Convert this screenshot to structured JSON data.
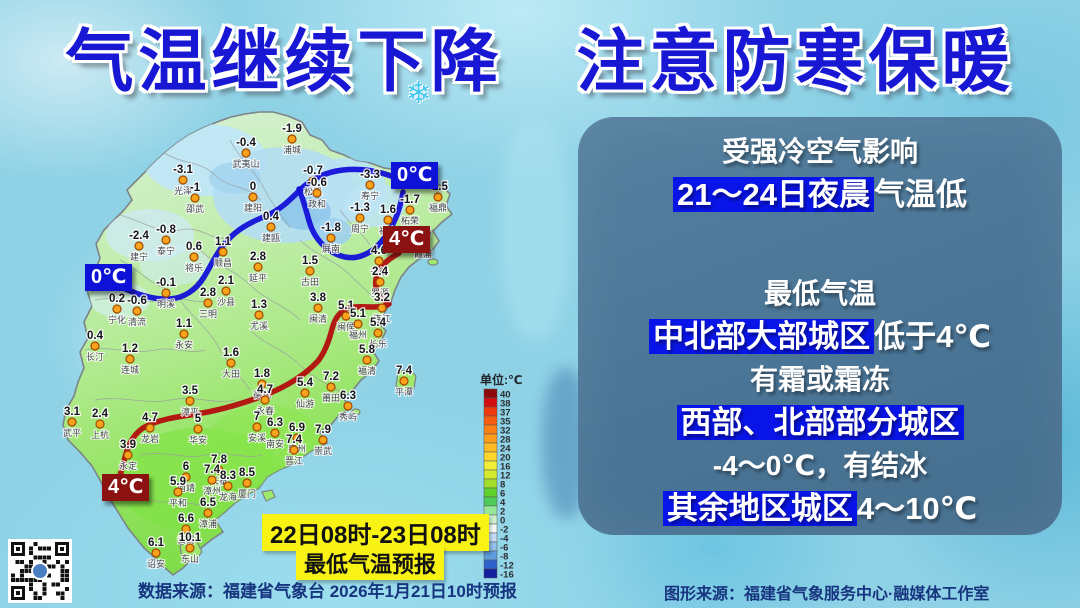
{
  "title": "气温继续下降　注意防寒保暖",
  "info_panel": {
    "lines": [
      {
        "segments": [
          {
            "t": "受强冷空气影响",
            "hl": false
          }
        ]
      },
      {
        "segments": [
          {
            "t": "21～24日夜晨",
            "hl": true
          },
          {
            "t": "气温低",
            "hl": false
          }
        ]
      },
      {
        "spacer": true
      },
      {
        "segments": [
          {
            "t": "最低气温",
            "hl": false
          }
        ]
      },
      {
        "segments": [
          {
            "t": "中北部大部城区",
            "hl": true
          },
          {
            "t": "低于4℃",
            "hl": false
          }
        ]
      },
      {
        "segments": [
          {
            "t": "有霜或霜冻",
            "hl": false
          }
        ]
      },
      {
        "segments": [
          {
            "t": "西部、北部部分城区",
            "hl": true
          }
        ]
      },
      {
        "segments": [
          {
            "t": "-4～0℃，有结冰",
            "hl": false
          }
        ]
      },
      {
        "segments": [
          {
            "t": "其余地区城区",
            "hl": true
          },
          {
            "t": "4～10℃",
            "hl": false
          }
        ]
      }
    ]
  },
  "caption": {
    "line1": "22日08时-23日08时",
    "line2": "最低气温预报"
  },
  "sources": {
    "data_source": "数据来源：福建省气象台 2026年1月21日10时预报",
    "graphic_source": "图形来源：福建省气象服务中心·融媒体工作室"
  },
  "legend": {
    "title": "单位:℃",
    "entries": [
      [
        "40",
        "#8c0a0a"
      ],
      [
        "38",
        "#d40f0f"
      ],
      [
        "37",
        "#ee3a0e"
      ],
      [
        "35",
        "#f65d10"
      ],
      [
        "32",
        "#f97e14"
      ],
      [
        "28",
        "#fb9c1c"
      ],
      [
        "24",
        "#fdbb24"
      ],
      [
        "20",
        "#fdd72c"
      ],
      [
        "16",
        "#f2ee38"
      ],
      [
        "12",
        "#d4e92e"
      ],
      [
        "8",
        "#a3de2a"
      ],
      [
        "6",
        "#5ed12c"
      ],
      [
        "4",
        "#4ecb58"
      ],
      [
        "2",
        "#97e79b"
      ],
      [
        "0",
        "#cef2cf"
      ],
      [
        "-2",
        "#f3f8f3"
      ],
      [
        "-4",
        "#c2dcf2"
      ],
      [
        "-6",
        "#94c2ea"
      ],
      [
        "-8",
        "#5f9cdd"
      ],
      [
        "-12",
        "#2f62cd"
      ],
      [
        "-16",
        "#141f9e"
      ]
    ]
  },
  "map": {
    "contour_labels": [
      {
        "text": "0℃"
      },
      {
        "text": "0℃"
      },
      {
        "text": "4℃"
      },
      {
        "text": "4℃"
      }
    ],
    "contours": [
      {
        "name": "isotherm-0c",
        "color": "#1411d8",
        "paths": [
          "M119 286 C136 294 153 300 170 299 C184 298 196 290 204 277 C212 264 217 252 226 242 C237 229 251 222 266 216 C280 210 290 200 300 190 C311 179 326 172 343 170 C360 168 377 171 391 176",
          "M403 192 C400 211 393 228 381 242 C371 254 356 261 341 256 C326 251 315 239 310 224 C306 211 303 198 299 189"
        ]
      },
      {
        "name": "isotherm-4c",
        "color": "#b30e0e",
        "paths": [
          "M399 253 C389 259 378 266 376 279 C374 291 381 298 389 304 C380 309 367 306 354 307 C342 308 335 317 332 329 C329 341 325 352 318 361 C303 377 282 389 260 397 C238 405 216 411 196 414 C176 417 156 420 143 428 C131 436 127 449 124 461 C122 470 120 475 119 479"
        ]
      }
    ],
    "stations": [
      [
        "浦城",
        "-1.9",
        292,
        139
      ],
      [
        "武夷山",
        "-0.4",
        246,
        153
      ],
      [
        "光泽",
        "-3.1",
        183,
        180
      ],
      [
        "邵武",
        "-1",
        195,
        198
      ],
      [
        "建阳",
        "0",
        253,
        197
      ],
      [
        "松溪",
        "-0.7",
        313,
        181
      ],
      [
        "政和",
        "-0.6",
        317,
        193
      ],
      [
        "建瓯",
        "0.4",
        271,
        227
      ],
      [
        "寿宁",
        "-3.3",
        370,
        185
      ],
      [
        "福鼎",
        "-1.5",
        438,
        197
      ],
      [
        "柘荣",
        "-1.7",
        410,
        210
      ],
      [
        "福安",
        "1.6",
        388,
        220
      ],
      [
        "霞浦",
        "2.6",
        423,
        243
      ],
      [
        "周宁",
        "-1.3",
        360,
        218
      ],
      [
        "屏南",
        "-1.8",
        331,
        238
      ],
      [
        "宁德",
        "4.6",
        379,
        261
      ],
      [
        "古田",
        "1.5",
        310,
        271
      ],
      [
        "泰宁",
        "-0.8",
        166,
        240
      ],
      [
        "建宁",
        "-2.4",
        139,
        246
      ],
      [
        "将乐",
        "0.6",
        194,
        257
      ],
      [
        "顺昌",
        "1.1",
        223,
        252
      ],
      [
        "延平",
        "2.8",
        258,
        267
      ],
      [
        "明溪",
        "-0.1",
        166,
        293
      ],
      [
        "宁化",
        "0.2",
        117,
        309
      ],
      [
        "清流",
        "-0.6",
        137,
        311
      ],
      [
        "三明",
        "2.8",
        208,
        303
      ],
      [
        "沙县",
        "2.1",
        226,
        291
      ],
      [
        "尤溪",
        "1.3",
        259,
        315
      ],
      [
        "闽清",
        "3.8",
        318,
        308
      ],
      [
        "罗源",
        "2.4",
        380,
        282
      ],
      [
        "连江",
        "3.2",
        382,
        308
      ],
      [
        "闽侯",
        "5.1",
        346,
        316
      ],
      [
        "福州",
        "5.1",
        358,
        324
      ],
      [
        "长乐",
        "5.4",
        378,
        333
      ],
      [
        "福清",
        "5.8",
        367,
        360
      ],
      [
        "平潭",
        "7.4",
        404,
        381
      ],
      [
        "长汀",
        "0.4",
        95,
        346
      ],
      [
        "连城",
        "1.2",
        130,
        359
      ],
      [
        "永安",
        "1.1",
        184,
        334
      ],
      [
        "大田",
        "1.6",
        231,
        363
      ],
      [
        "德化",
        "1.8",
        262,
        384
      ],
      [
        "永春",
        "4.7",
        265,
        400
      ],
      [
        "仙游",
        "5.4",
        305,
        393
      ],
      [
        "莆田",
        "7.2",
        331,
        387
      ],
      [
        "秀屿",
        "6.3",
        348,
        406
      ],
      [
        "漳平",
        "3.5",
        190,
        401
      ],
      [
        "武平",
        "3.1",
        72,
        422
      ],
      [
        "上杭",
        "2.4",
        100,
        424
      ],
      [
        "龙岩",
        "4.7",
        150,
        428
      ],
      [
        "安溪",
        "7",
        257,
        427
      ],
      [
        "南安",
        "6.3",
        275,
        433
      ],
      [
        "泉州",
        "6.9",
        297,
        438
      ],
      [
        "晋江",
        "7.4",
        294,
        450
      ],
      [
        "崇武",
        "7.9",
        323,
        440
      ],
      [
        "永定",
        "3.9",
        128,
        455
      ],
      [
        "南靖",
        "6",
        186,
        477
      ],
      [
        "平和",
        "5.9",
        178,
        492
      ],
      [
        "华安",
        "5",
        198,
        429
      ],
      [
        "长泰",
        "7.8",
        219,
        470
      ],
      [
        "漳州",
        "7.4",
        212,
        480
      ],
      [
        "龙海",
        "8.3",
        228,
        486
      ],
      [
        "厦门",
        "8.5",
        247,
        483
      ],
      [
        "漳浦",
        "6.5",
        208,
        513
      ],
      [
        "云霄",
        "6.6",
        186,
        529
      ],
      [
        "诏安",
        "6.1",
        156,
        553
      ],
      [
        "东山",
        "10.1",
        190,
        548
      ]
    ]
  },
  "colors": {
    "title_blue": "#1818d4",
    "highlight_blue": "#0915e8",
    "contour_blue": "#1411d8",
    "contour_red": "#b30e0e",
    "panel_bg": "#4b7596",
    "caption_yellow": "#f8f215",
    "source_text": "#17357f",
    "station_dot": "#f9a21b"
  }
}
